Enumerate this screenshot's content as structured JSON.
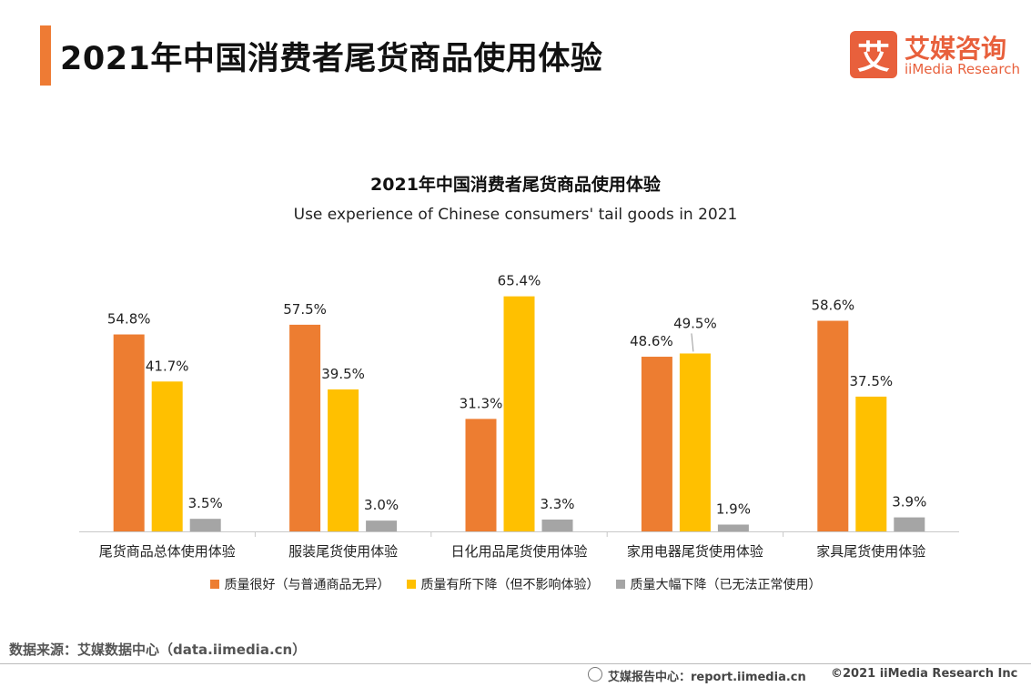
{
  "header": {
    "title": "2021年中国消费者尾货商品使用体验",
    "logo_mark": "艾",
    "logo_cn": "艾媒咨询",
    "logo_en": "iiMedia Research"
  },
  "colors": {
    "accent": "#ee7b34",
    "series1": "#ed7d31",
    "series2": "#ffc000",
    "series3": "#a5a5a5"
  },
  "chart_data": {
    "type": "bar",
    "title": "2021年中国消费者尾货商品使用体验",
    "subtitle": "Use experience of Chinese consumers' tail goods in 2021",
    "xlabel": "",
    "ylabel": "",
    "ylim": [
      0,
      70
    ],
    "grid": false,
    "legend_position": "bottom",
    "categories": [
      "尾货商品总体使用体验",
      "服装尾货使用体验",
      "日化用品尾货使用体验",
      "家用电器尾货使用体验",
      "家具尾货使用体验"
    ],
    "series": [
      {
        "name": "质量很好（与普通商品无异）",
        "values": [
          54.8,
          57.5,
          31.3,
          48.6,
          58.6
        ],
        "labels": [
          "54.8%",
          "57.5%",
          "31.3%",
          "48.6%",
          "58.6%"
        ]
      },
      {
        "name": "质量有所下降（但不影响体验）",
        "values": [
          41.7,
          39.5,
          65.4,
          49.5,
          37.5
        ],
        "labels": [
          "41.7%",
          "39.5%",
          "65.4%",
          "49.5%",
          "37.5%"
        ]
      },
      {
        "name": "质量大幅下降（已无法正常使用）",
        "values": [
          3.5,
          3.0,
          3.3,
          1.9,
          3.9
        ],
        "labels": [
          "3.5%",
          "3.0%",
          "3.3%",
          "1.9%",
          "3.9%"
        ]
      }
    ]
  },
  "footer": {
    "source": "数据来源：艾媒数据中心（data.iimedia.cn）",
    "report_center": "艾媒报告中心：report.iimedia.cn",
    "copyright": "©2021  iiMedia Research  Inc"
  }
}
